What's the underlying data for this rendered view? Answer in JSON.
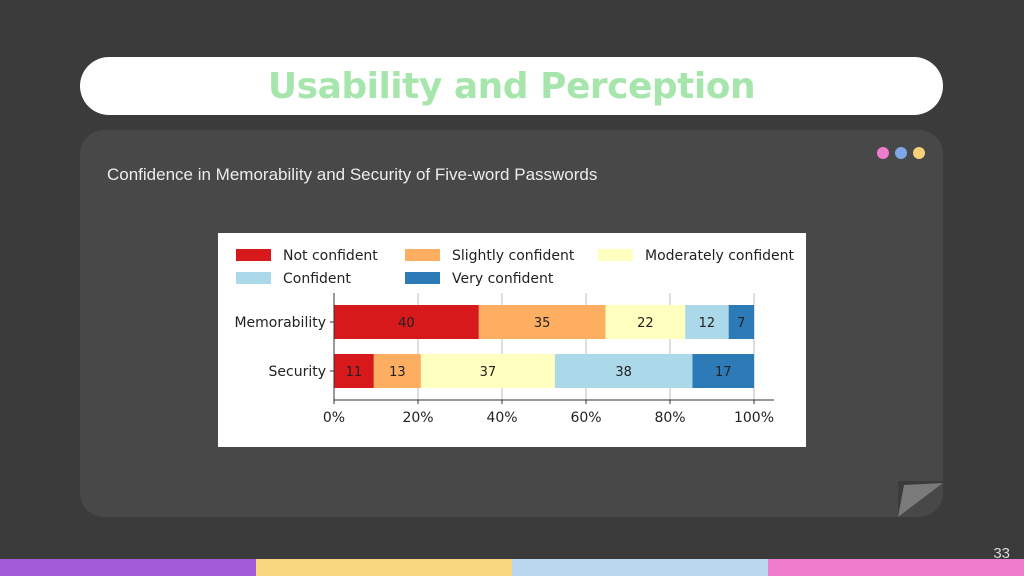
{
  "slide": {
    "title": "Usability and Perception",
    "subtitle": "Confidence in Memorability and Security of Five-word Passwords",
    "page_number": "33",
    "title_color": "#a6e6ad",
    "dot_colors": [
      "#f07ccd",
      "#7ea7e8",
      "#f7d07a"
    ],
    "bottom_bar_colors": [
      "#a15ad8",
      "#f8d77e",
      "#b9d8f0",
      "#f07ccd"
    ]
  },
  "chart_data": {
    "type": "bar",
    "orientation": "horizontal",
    "stacked": true,
    "normalized": true,
    "categories": [
      "Memorability",
      "Security"
    ],
    "series": [
      {
        "name": "Not confident",
        "color": "#d7191c",
        "values": [
          40,
          11
        ]
      },
      {
        "name": "Slightly confident",
        "color": "#fdae61",
        "values": [
          35,
          13
        ]
      },
      {
        "name": "Moderately confident",
        "color": "#ffffbf",
        "values": [
          22,
          37
        ]
      },
      {
        "name": "Confident",
        "color": "#abd9e9",
        "values": [
          12,
          38
        ]
      },
      {
        "name": "Very confident",
        "color": "#2c7bb6",
        "values": [
          7,
          17
        ]
      }
    ],
    "x_ticks": [
      "0%",
      "20%",
      "40%",
      "60%",
      "80%",
      "100%"
    ],
    "xlim": [
      0,
      100
    ],
    "grid": "vertical",
    "legend_position": "top"
  }
}
